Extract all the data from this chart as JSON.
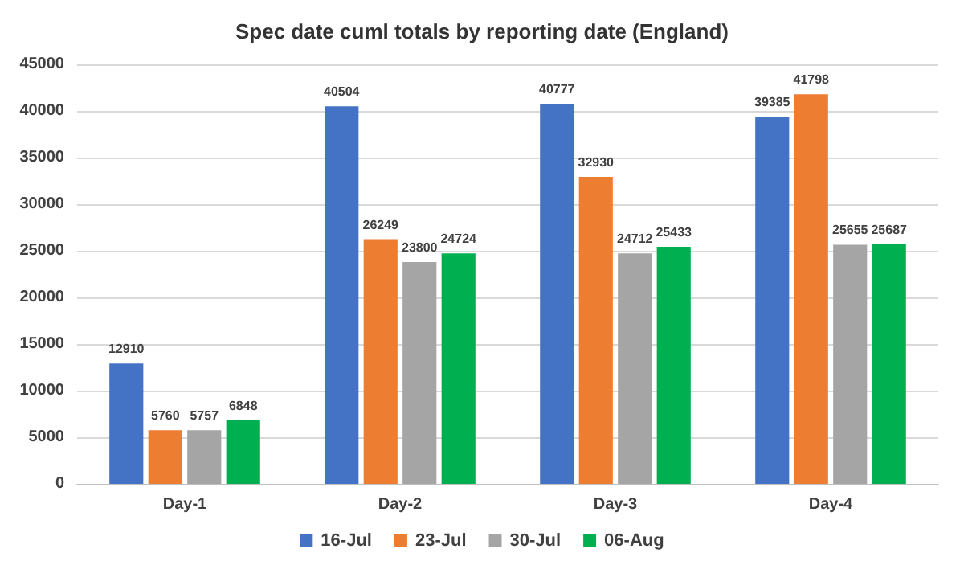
{
  "chart_data": {
    "type": "bar",
    "title": "Spec date cuml totals by reporting date (England)",
    "categories": [
      "Day-1",
      "Day-2",
      "Day-3",
      "Day-4"
    ],
    "series": [
      {
        "name": "16-Jul",
        "color": "#4472c4",
        "values": [
          12910,
          40504,
          40777,
          39385
        ]
      },
      {
        "name": "23-Jul",
        "color": "#ed7d31",
        "values": [
          5760,
          26249,
          32930,
          41798
        ]
      },
      {
        "name": "30-Jul",
        "color": "#a5a5a5",
        "values": [
          5757,
          23800,
          24712,
          25655
        ]
      },
      {
        "name": "06-Aug",
        "color": "#00b050",
        "values": [
          6848,
          24724,
          25433,
          25687
        ]
      }
    ],
    "ylim": [
      0,
      45000
    ],
    "yticks": [
      0,
      5000,
      10000,
      15000,
      20000,
      25000,
      30000,
      35000,
      40000,
      45000
    ],
    "grid": "y",
    "legend": "bottom",
    "data_labels": true
  }
}
